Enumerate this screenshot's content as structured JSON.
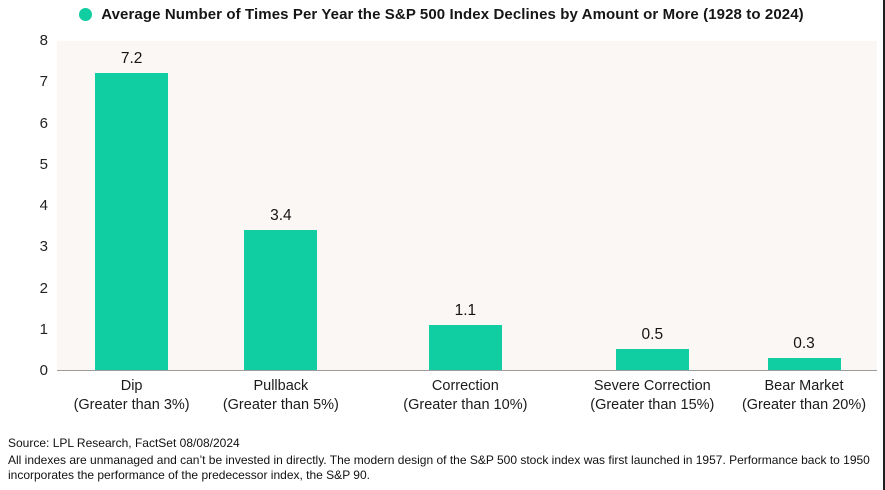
{
  "colors": {
    "accent_teal": "#10cda2",
    "plot_background": "#fbf7f5",
    "axis_line": "#9b9b9b",
    "text": "#161616"
  },
  "legend": {
    "dot_icon": "teal-circle"
  },
  "chart_data": {
    "type": "bar",
    "title": "Average Number of Times Per Year the S&P 500 Index Declines by Amount or More (1928 to 2024)",
    "categories": [
      "Dip",
      "Pullback",
      "Correction",
      "Severe Correction",
      "Bear Market"
    ],
    "category_sublabels": [
      "(Greater than 3%)",
      "(Greater than 5%)",
      "(Greater than 10%)",
      "(Greater than 15%)",
      "(Greater than 20%)"
    ],
    "values": [
      7.2,
      3.4,
      1.1,
      0.5,
      0.3
    ],
    "bar_labels": [
      "7.2",
      "3.4",
      "1.1",
      "0.5",
      "0.3"
    ],
    "xlabel": "",
    "ylabel": "",
    "ylim": [
      0,
      8
    ],
    "yticks": [
      8,
      7,
      6,
      5,
      4,
      3,
      2,
      1,
      0
    ],
    "grid": "off",
    "legend_position": "top-center",
    "bar_color": "#10cda2"
  },
  "footer": {
    "source_line": "Source: LPL Research, FactSet 08/08/2024",
    "disclaimer": "All indexes are unmanaged and can’t be invested in directly. The modern design of the S&P 500 stock index was first launched in 1957. Performance back to 1950 incorporates the performance of the predecessor index, the S&P 90."
  }
}
